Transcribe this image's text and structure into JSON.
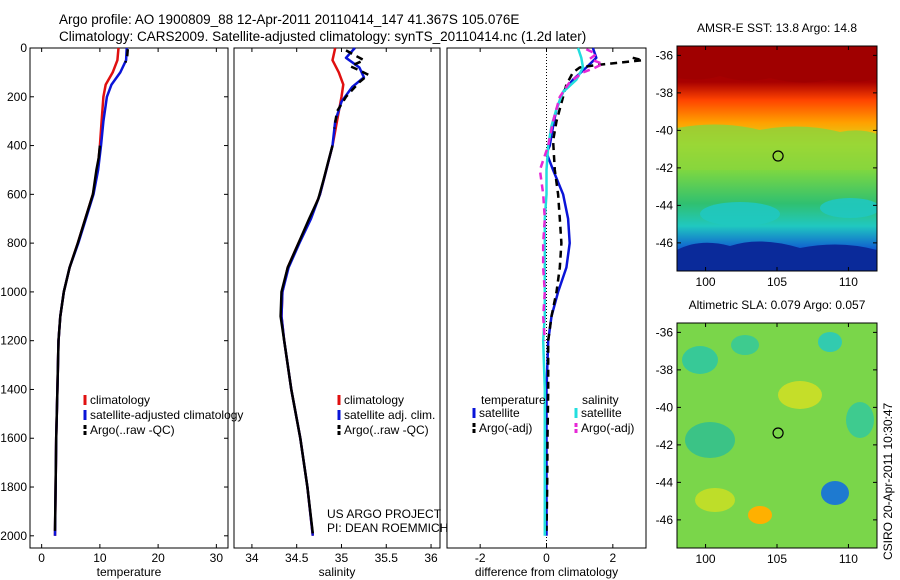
{
  "title": {
    "line1": "Argo profile: AO 1900809_88 12-Apr-2011 20110414_147 41.367S 105.076E",
    "line2": "Climatology: CARS2009. Satellite-adjusted climatology: synTS_20110414.nc (1.2d later)"
  },
  "colors": {
    "climatology": "#e01010",
    "satellite": "#0a14d8",
    "argo": "#000000",
    "satellite_salinity": "#22dede",
    "argo_salinity": "#e628d6"
  },
  "chart_data": [
    {
      "type": "line",
      "xlabel": "temperature",
      "ylabel": "",
      "xlim": [
        -2,
        32
      ],
      "ylim": [
        0,
        2050
      ],
      "y_reversed": true,
      "xticks": [
        0,
        10,
        20,
        30
      ],
      "yticks": [
        0,
        200,
        400,
        600,
        800,
        1000,
        1200,
        1400,
        1600,
        1800,
        2000
      ],
      "legend": {
        "placement": "lower-right",
        "title_left": "",
        "title_right": "",
        "entries": [
          "climatology",
          "satellite-adjusted climatology",
          "Argo(..raw -QC)"
        ]
      },
      "series": [
        {
          "name": "climatology",
          "style": "solid",
          "color": "#e01010",
          "points": [
            [
              13.2,
              0
            ],
            [
              13.0,
              50
            ],
            [
              12.2,
              100
            ],
            [
              11.0,
              150
            ],
            [
              10.6,
              200
            ],
            [
              10.3,
              300
            ],
            [
              10.0,
              400
            ],
            [
              9.6,
              500
            ],
            [
              8.8,
              600
            ],
            [
              7.5,
              700
            ],
            [
              6.2,
              800
            ],
            [
              4.8,
              900
            ],
            [
              3.8,
              1000
            ],
            [
              3.2,
              1100
            ],
            [
              2.9,
              1200
            ],
            [
              2.7,
              1400
            ],
            [
              2.5,
              1600
            ],
            [
              2.4,
              1800
            ],
            [
              2.3,
              2000
            ]
          ]
        },
        {
          "name": "satellite-adjusted climatology",
          "style": "solid",
          "color": "#0a14d8",
          "points": [
            [
              14.6,
              0
            ],
            [
              14.5,
              50
            ],
            [
              13.5,
              100
            ],
            [
              12.0,
              150
            ],
            [
              11.2,
              200
            ],
            [
              10.6,
              300
            ],
            [
              10.2,
              400
            ],
            [
              9.7,
              500
            ],
            [
              8.9,
              600
            ],
            [
              7.6,
              700
            ],
            [
              6.3,
              800
            ],
            [
              4.8,
              900
            ],
            [
              3.8,
              1000
            ],
            [
              3.2,
              1100
            ],
            [
              2.9,
              1200
            ],
            [
              2.7,
              1400
            ],
            [
              2.5,
              1600
            ],
            [
              2.4,
              1800
            ],
            [
              2.3,
              2000
            ]
          ]
        },
        {
          "name": "Argo(..raw -QC)",
          "style": "dashed",
          "color": "#000000",
          "points": [
            [
              14.8,
              5
            ],
            [
              14.7,
              30
            ],
            [
              14.4,
              60
            ]
          ]
        },
        {
          "name": "Argo(..raw -QC)",
          "style": "solid",
          "color": "#000000",
          "points": [
            [
              10.0,
              400
            ],
            [
              9.8,
              450
            ],
            [
              9.4,
              500
            ],
            [
              8.8,
              600
            ],
            [
              7.5,
              700
            ],
            [
              6.2,
              800
            ],
            [
              4.8,
              900
            ],
            [
              3.8,
              1000
            ],
            [
              3.2,
              1100
            ],
            [
              2.9,
              1200
            ],
            [
              2.7,
              1400
            ],
            [
              2.5,
              1600
            ],
            [
              2.4,
              1800
            ],
            [
              2.3,
              1980
            ]
          ]
        }
      ]
    },
    {
      "type": "line",
      "xlabel": "salinity",
      "ylabel": "",
      "xlim": [
        33.8,
        36.1
      ],
      "ylim": [
        0,
        2050
      ],
      "y_reversed": true,
      "xticks": [
        34,
        34.5,
        35,
        35.5,
        36
      ],
      "yticks": [],
      "legend": {
        "placement": "lower-right",
        "title_left": "",
        "title_right": "",
        "entries": [
          "climatology",
          "satellite adj. clim.",
          "Argo(..raw -QC)"
        ]
      },
      "annotations": [
        "US ARGO PROJECT",
        "PI: DEAN ROEMMICH"
      ],
      "series": [
        {
          "name": "climatology",
          "style": "solid",
          "color": "#e01010",
          "points": [
            [
              34.93,
              0
            ],
            [
              34.9,
              50
            ],
            [
              34.97,
              100
            ],
            [
              35.02,
              150
            ],
            [
              35.0,
              200
            ],
            [
              34.95,
              300
            ],
            [
              34.9,
              400
            ],
            [
              34.83,
              500
            ],
            [
              34.76,
              600
            ],
            [
              34.65,
              700
            ],
            [
              34.52,
              800
            ],
            [
              34.4,
              900
            ],
            [
              34.34,
              1000
            ],
            [
              34.33,
              1100
            ],
            [
              34.36,
              1200
            ],
            [
              34.44,
              1400
            ],
            [
              34.54,
              1600
            ],
            [
              34.62,
              1800
            ],
            [
              34.68,
              2000
            ]
          ]
        },
        {
          "name": "satellite adj. clim.",
          "style": "solid",
          "color": "#0a14d8",
          "points": [
            [
              35.15,
              0
            ],
            [
              35.05,
              40
            ],
            [
              35.2,
              80
            ],
            [
              35.25,
              120
            ],
            [
              35.12,
              160
            ],
            [
              35.0,
              220
            ],
            [
              34.93,
              300
            ],
            [
              34.9,
              400
            ],
            [
              34.83,
              500
            ],
            [
              34.76,
              600
            ],
            [
              34.66,
              700
            ],
            [
              34.53,
              800
            ],
            [
              34.41,
              900
            ],
            [
              34.34,
              1000
            ],
            [
              34.33,
              1100
            ],
            [
              34.36,
              1200
            ],
            [
              34.44,
              1400
            ],
            [
              34.54,
              1600
            ],
            [
              34.62,
              1800
            ],
            [
              34.68,
              2000
            ]
          ]
        },
        {
          "name": "Argo(..raw -QC)",
          "style": "dashed",
          "color": "#000000",
          "points": [
            [
              35.05,
              10
            ],
            [
              35.15,
              30
            ],
            [
              35.25,
              50
            ],
            [
              35.1,
              75
            ],
            [
              35.22,
              95
            ],
            [
              35.3,
              110
            ],
            [
              35.2,
              140
            ],
            [
              35.05,
              200
            ],
            [
              34.95,
              260
            ],
            [
              34.92,
              330
            ]
          ]
        },
        {
          "name": "Argo(..raw -QC)",
          "style": "solid",
          "color": "#000000",
          "points": [
            [
              34.9,
              400
            ],
            [
              34.85,
              470
            ],
            [
              34.8,
              540
            ],
            [
              34.74,
              620
            ],
            [
              34.64,
              700
            ],
            [
              34.52,
              800
            ],
            [
              34.4,
              900
            ],
            [
              34.33,
              1000
            ],
            [
              34.32,
              1100
            ],
            [
              34.36,
              1200
            ],
            [
              34.44,
              1400
            ],
            [
              34.54,
              1600
            ],
            [
              34.62,
              1800
            ],
            [
              34.68,
              1990
            ]
          ]
        }
      ]
    },
    {
      "type": "line",
      "xlabel": "difference from climatology",
      "ylabel": "",
      "xlim": [
        -3,
        3
      ],
      "ylim": [
        0,
        2050
      ],
      "y_reversed": true,
      "xticks": [
        -2,
        0,
        2
      ],
      "yticks": [],
      "legend": {
        "placement": "lower-center",
        "title_left": "temperature",
        "title_right": "salinity",
        "entries_left": [
          "satellite",
          "Argo(-adj)"
        ],
        "entries_right": [
          "satellite",
          "Argo(-adj)"
        ]
      },
      "series": [
        {
          "name": "satellite",
          "group": "temperature",
          "style": "solid",
          "color": "#0a14d8",
          "points": [
            [
              1.4,
              0
            ],
            [
              1.5,
              40
            ],
            [
              1.2,
              80
            ],
            [
              0.8,
              130
            ],
            [
              0.5,
              180
            ],
            [
              0.3,
              250
            ],
            [
              0.2,
              320
            ],
            [
              0.1,
              400
            ],
            [
              0.0,
              430
            ],
            [
              0.2,
              500
            ],
            [
              0.5,
              600
            ],
            [
              0.65,
              700
            ],
            [
              0.7,
              800
            ],
            [
              0.6,
              900
            ],
            [
              0.35,
              1000
            ],
            [
              0.15,
              1100
            ],
            [
              0.05,
              1200
            ],
            [
              0.0,
              1400
            ],
            [
              0.0,
              2000
            ]
          ]
        },
        {
          "name": "Argo(-adj)",
          "group": "temperature",
          "style": "dashed",
          "color": "#000000",
          "points": [
            [
              2.6,
              40
            ],
            [
              2.9,
              50
            ],
            [
              2.2,
              60
            ],
            [
              1.5,
              70
            ],
            [
              1.0,
              80
            ],
            [
              0.8,
              100
            ],
            [
              0.6,
              150
            ],
            [
              0.4,
              250
            ],
            [
              0.3,
              300
            ],
            [
              0.2,
              380
            ],
            [
              0.25,
              500
            ],
            [
              0.35,
              600
            ],
            [
              0.4,
              700
            ],
            [
              0.45,
              800
            ],
            [
              0.4,
              900
            ],
            [
              0.3,
              1000
            ],
            [
              0.15,
              1100
            ],
            [
              0.05,
              1200
            ],
            [
              0.05,
              1400
            ],
            [
              0.03,
              1600
            ],
            [
              0.02,
              1800
            ],
            [
              0.0,
              1980
            ]
          ]
        },
        {
          "name": "satellite",
          "group": "salinity",
          "style": "solid",
          "color": "#22dede",
          "points": [
            [
              0.95,
              0
            ],
            [
              1.05,
              40
            ],
            [
              1.1,
              80
            ],
            [
              0.9,
              130
            ],
            [
              0.5,
              180
            ],
            [
              0.3,
              250
            ],
            [
              0.15,
              320
            ],
            [
              0.05,
              400
            ],
            [
              0.0,
              500
            ],
            [
              0.0,
              600
            ],
            [
              -0.05,
              700
            ],
            [
              -0.05,
              800
            ],
            [
              -0.05,
              900
            ],
            [
              -0.05,
              1000
            ],
            [
              -0.05,
              1100
            ],
            [
              -0.1,
              1200
            ],
            [
              -0.05,
              1400
            ],
            [
              -0.05,
              1600
            ],
            [
              -0.05,
              1800
            ],
            [
              -0.05,
              2000
            ]
          ]
        },
        {
          "name": "Argo(-adj)",
          "group": "salinity",
          "style": "dashed",
          "color": "#e628d6",
          "points": [
            [
              1.2,
              5
            ],
            [
              1.5,
              25
            ],
            [
              1.3,
              45
            ],
            [
              1.7,
              65
            ],
            [
              1.4,
              85
            ],
            [
              1.1,
              100
            ],
            [
              0.7,
              140
            ],
            [
              0.4,
              200
            ],
            [
              0.2,
              300
            ],
            [
              0.05,
              400
            ],
            [
              -0.2,
              500
            ],
            [
              -0.1,
              600
            ],
            [
              -0.05,
              700
            ],
            [
              -0.1,
              800
            ],
            [
              -0.1,
              900
            ],
            [
              -0.05,
              1000
            ],
            [
              -0.1,
              1100
            ],
            [
              -0.05,
              1200
            ]
          ]
        }
      ]
    },
    {
      "type": "heatmap",
      "title": "AMSR-E SST: 13.8 Argo: 14.8",
      "xlim": [
        98,
        112
      ],
      "ylim": [
        -47.5,
        -35.5
      ],
      "xticks": [
        100,
        105,
        110
      ],
      "yticks": [
        -36,
        -38,
        -40,
        -42,
        -44,
        -46
      ],
      "marker": {
        "lon": 105.076,
        "lat": -41.367
      }
    },
    {
      "type": "heatmap",
      "title": "Altimetric SLA: 0.079 Argo: 0.057",
      "xlim": [
        98,
        112
      ],
      "ylim": [
        -47.5,
        -35.5
      ],
      "xticks": [
        100,
        105,
        110
      ],
      "yticks": [
        -36,
        -38,
        -40,
        -42,
        -44,
        -46
      ],
      "marker": {
        "lon": 105.076,
        "lat": -41.367
      }
    }
  ],
  "footer": {
    "stamp": "CSIRO 20-Apr-2011 10:30:47"
  }
}
